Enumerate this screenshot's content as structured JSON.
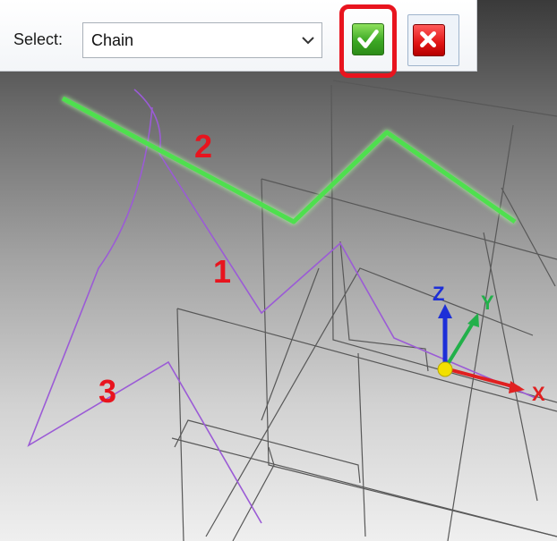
{
  "toolbar": {
    "select_label": "Select:",
    "select_value": "Chain",
    "accept_icon": "checkmark-icon",
    "cancel_icon": "x-icon"
  },
  "annotations": {
    "one": "1",
    "two": "2",
    "three": "3"
  },
  "axes": {
    "x": "X",
    "y": "Y",
    "z": "Z"
  },
  "colors": {
    "highlight": "#e8141e",
    "selected_chain": "#4ee04e",
    "sketch_curve": "#9b5bd6",
    "x_axis": "#e02020",
    "y_axis": "#22b04a",
    "z_axis": "#1d2fd8",
    "origin": "#f2e000"
  }
}
